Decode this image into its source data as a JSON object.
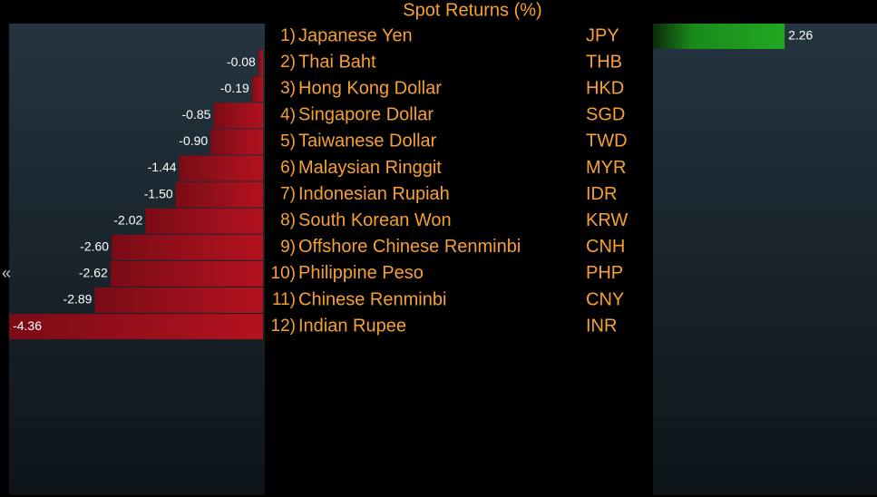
{
  "chart_data": {
    "type": "bar",
    "orientation": "horizontal",
    "title": "Spot Returns (%)",
    "ranks": [
      "1)",
      "2)",
      "3)",
      "4)",
      "5)",
      "6)",
      "7)",
      "8)",
      "9)",
      "10)",
      "11)",
      "12)"
    ],
    "categories": [
      "Japanese Yen",
      "Thai Baht",
      "Hong Kong Dollar",
      "Singapore Dollar",
      "Taiwanese Dollar",
      "Malaysian Ringgit",
      "Indonesian Rupiah",
      "South Korean Won",
      "Offshore Chinese Renminbi",
      "Philippine Peso",
      "Chinese Renminbi",
      "Indian Rupee"
    ],
    "codes": [
      "JPY",
      "THB",
      "HKD",
      "SGD",
      "TWD",
      "MYR",
      "IDR",
      "KRW",
      "CNH",
      "PHP",
      "CNY",
      "INR"
    ],
    "values": [
      2.26,
      -0.08,
      -0.19,
      -0.85,
      -0.9,
      -1.44,
      -1.5,
      -2.02,
      -2.6,
      -2.62,
      -2.89,
      -4.36
    ],
    "value_labels": [
      "2.26",
      "-0.08",
      "-0.19",
      "-0.85",
      "-0.90",
      "-1.44",
      "-1.50",
      "-2.02",
      "-2.60",
      "-2.62",
      "-2.89",
      "-4.36"
    ],
    "positive_color": "#22a822",
    "negative_color": "#b3121f",
    "text_color": "#f7a034"
  }
}
